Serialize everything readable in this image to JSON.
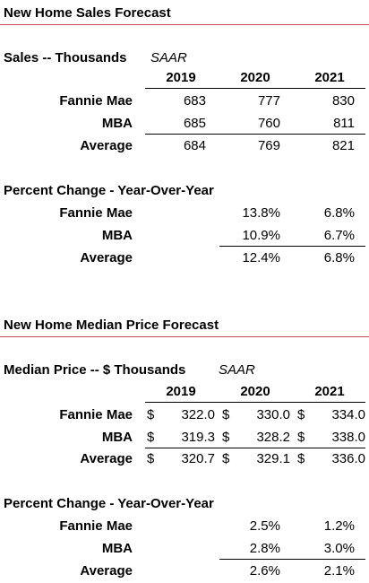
{
  "sales": {
    "title": "New Home Sales Forecast",
    "subtitle": "Sales -- Thousands",
    "saar": "SAAR",
    "years": [
      "2019",
      "2020",
      "2021"
    ],
    "rows": [
      {
        "label": "Fannie Mae",
        "v": [
          "683",
          "777",
          "830"
        ]
      },
      {
        "label": "MBA",
        "v": [
          "685",
          "760",
          "811"
        ]
      },
      {
        "label": "Average",
        "v": [
          "684",
          "769",
          "821"
        ]
      }
    ],
    "pct": {
      "title": "Percent Change - Year-Over-Year",
      "rows": [
        {
          "label": "Fannie Mae",
          "v": [
            "13.8%",
            "6.8%"
          ]
        },
        {
          "label": "MBA",
          "v": [
            "10.9%",
            "6.7%"
          ]
        },
        {
          "label": "Average",
          "v": [
            "12.4%",
            "6.8%"
          ]
        }
      ]
    }
  },
  "price": {
    "title": "New Home Median Price Forecast",
    "subtitle": "Median Price -- $ Thousands",
    "saar": "SAAR",
    "years": [
      "2019",
      "2020",
      "2021"
    ],
    "currency": "$",
    "rows": [
      {
        "label": "Fannie Mae",
        "v": [
          "322.0",
          "330.0",
          "334.0"
        ]
      },
      {
        "label": "MBA",
        "v": [
          "319.3",
          "328.2",
          "338.0"
        ]
      },
      {
        "label": "Average",
        "v": [
          "320.7",
          "329.1",
          "336.0"
        ]
      }
    ],
    "pct": {
      "title": "Percent Change - Year-Over-Year",
      "rows": [
        {
          "label": "Fannie Mae",
          "v": [
            "2.5%",
            "1.2%"
          ]
        },
        {
          "label": "MBA",
          "v": [
            "2.8%",
            "3.0%"
          ]
        },
        {
          "label": "Average",
          "v": [
            "2.6%",
            "2.1%"
          ]
        }
      ]
    }
  }
}
